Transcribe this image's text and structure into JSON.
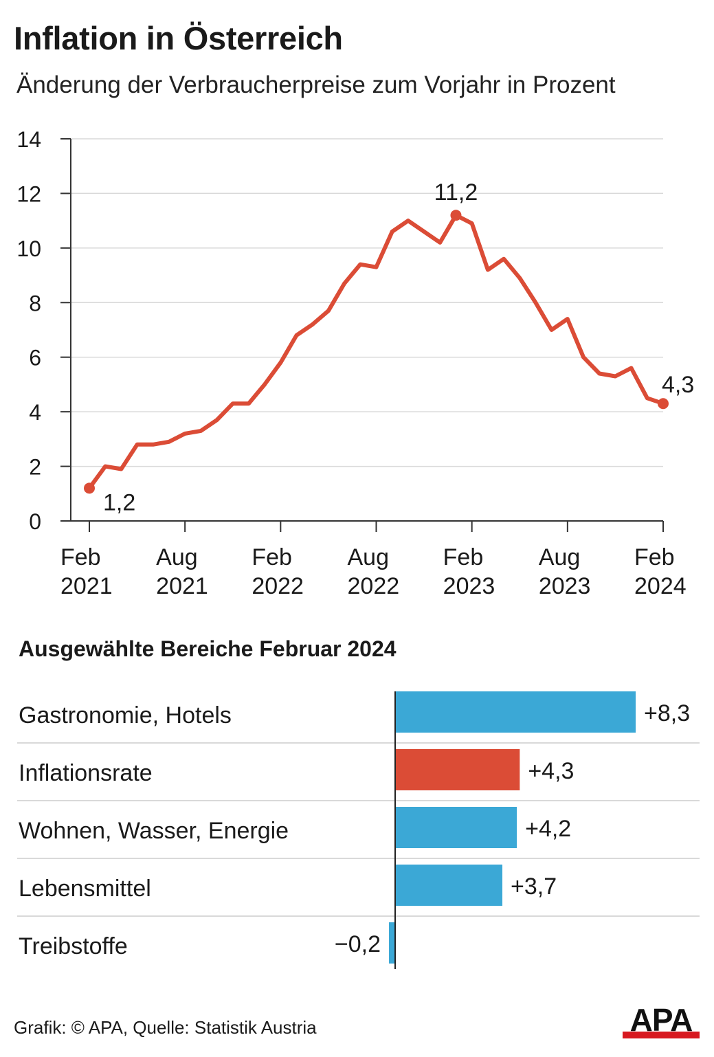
{
  "header": {
    "title": "Inflation in Österreich",
    "subtitle": "Änderung der Verbraucherpreise zum Vorjahr in Prozent"
  },
  "bars_section": {
    "title": "Ausgewählte Bereiche Februar 2024"
  },
  "footer": {
    "credit": "Grafik: © APA, Quelle: Statistik Austria",
    "logo": "APA"
  },
  "colors": {
    "line": "#db4c36",
    "bar_blue": "#3ba8d6",
    "bar_highlight": "#db4c36",
    "grid": "#d9d9d9",
    "logo_red": "#d71920"
  },
  "chart_data": [
    {
      "type": "line",
      "title": "Inflation in Österreich",
      "subtitle": "Änderung der Verbraucherpreise zum Vorjahr in Prozent",
      "ylim": [
        0,
        14
      ],
      "yticks": [
        0,
        2,
        4,
        6,
        8,
        10,
        12,
        14
      ],
      "grid": true,
      "x_tick_labels": [
        [
          "Feb",
          "2021"
        ],
        [
          "Aug",
          "2021"
        ],
        [
          "Feb",
          "2022"
        ],
        [
          "Aug",
          "2022"
        ],
        [
          "Feb",
          "2023"
        ],
        [
          "Aug",
          "2023"
        ],
        [
          "Feb",
          "2024"
        ]
      ],
      "x": [
        "2021-02",
        "2021-03",
        "2021-04",
        "2021-05",
        "2021-06",
        "2021-07",
        "2021-08",
        "2021-09",
        "2021-10",
        "2021-11",
        "2021-12",
        "2022-01",
        "2022-02",
        "2022-03",
        "2022-04",
        "2022-05",
        "2022-06",
        "2022-07",
        "2022-08",
        "2022-09",
        "2022-10",
        "2022-11",
        "2022-12",
        "2023-01",
        "2023-02",
        "2023-03",
        "2023-04",
        "2023-05",
        "2023-06",
        "2023-07",
        "2023-08",
        "2023-09",
        "2023-10",
        "2023-11",
        "2023-12",
        "2024-01",
        "2024-02"
      ],
      "values": [
        1.2,
        2.0,
        1.9,
        2.8,
        2.8,
        2.9,
        3.2,
        3.3,
        3.7,
        4.3,
        4.3,
        5.0,
        5.8,
        6.8,
        7.2,
        7.7,
        8.7,
        9.4,
        9.3,
        10.6,
        11.0,
        10.6,
        10.2,
        11.2,
        10.9,
        9.2,
        9.6,
        8.9,
        8.0,
        7.0,
        7.4,
        6.0,
        5.4,
        5.3,
        5.6,
        4.5,
        4.3
      ],
      "annotations": [
        {
          "index": 0,
          "label": "1,2"
        },
        {
          "index": 23,
          "label": "11,2"
        },
        {
          "index": 36,
          "label": "4,3"
        }
      ]
    },
    {
      "type": "bar",
      "orientation": "horizontal",
      "title": "Ausgewählte Bereiche Februar 2024",
      "categories": [
        "Gastronomie, Hotels",
        "Inflationsrate",
        "Wohnen, Wasser, Energie",
        "Lebensmittel",
        "Treibstoffe"
      ],
      "values": [
        8.3,
        4.3,
        4.2,
        3.7,
        -0.2
      ],
      "labels": [
        "+8,3",
        "+4,3",
        "+4,2",
        "+3,7",
        "−0,2"
      ],
      "highlight": [
        "Inflationsrate"
      ]
    }
  ]
}
